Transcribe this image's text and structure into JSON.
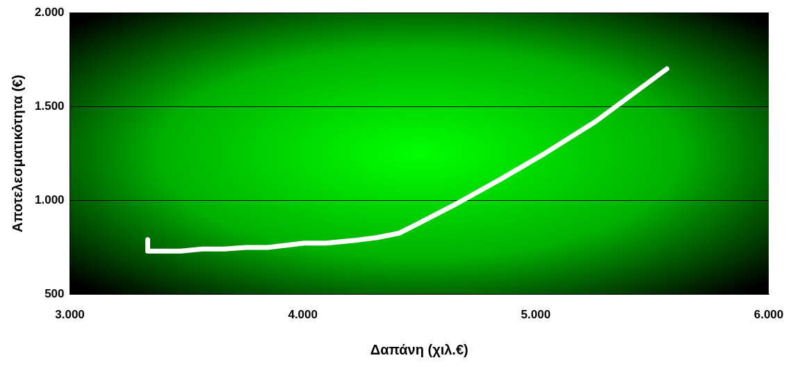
{
  "chart_data": {
    "type": "line",
    "xlabel": "Δαπάνη (χιλ.€)",
    "ylabel": "Αποτελεσματικότητα (€)",
    "xlim": [
      3000,
      6000
    ],
    "ylim": [
      500,
      2000
    ],
    "xticks": [
      {
        "value": 3000,
        "label": "3.000"
      },
      {
        "value": 4000,
        "label": "4.000"
      },
      {
        "value": 5000,
        "label": "5.000"
      },
      {
        "value": 6000,
        "label": "6.000"
      }
    ],
    "yticks": [
      {
        "value": 500,
        "label": "500"
      },
      {
        "value": 1000,
        "label": "1.000"
      },
      {
        "value": 1500,
        "label": "1.500"
      },
      {
        "value": 2000,
        "label": "2.000"
      }
    ],
    "grid": "y",
    "marker": "none",
    "line_style": "solid",
    "series": [
      {
        "color": "#ffffff",
        "x": [
          3334,
          3334,
          3356,
          3475,
          3569,
          3663,
          3756,
          3850,
          4006,
          4100,
          4225,
          4319,
          4413,
          4475,
          4663,
          4850,
          5038,
          5256,
          5563
        ],
        "values": [
          792,
          731,
          731,
          731,
          742,
          742,
          750,
          750,
          773,
          773,
          788,
          803,
          826,
          864,
          985,
          1114,
          1250,
          1420,
          1701
        ]
      }
    ]
  }
}
